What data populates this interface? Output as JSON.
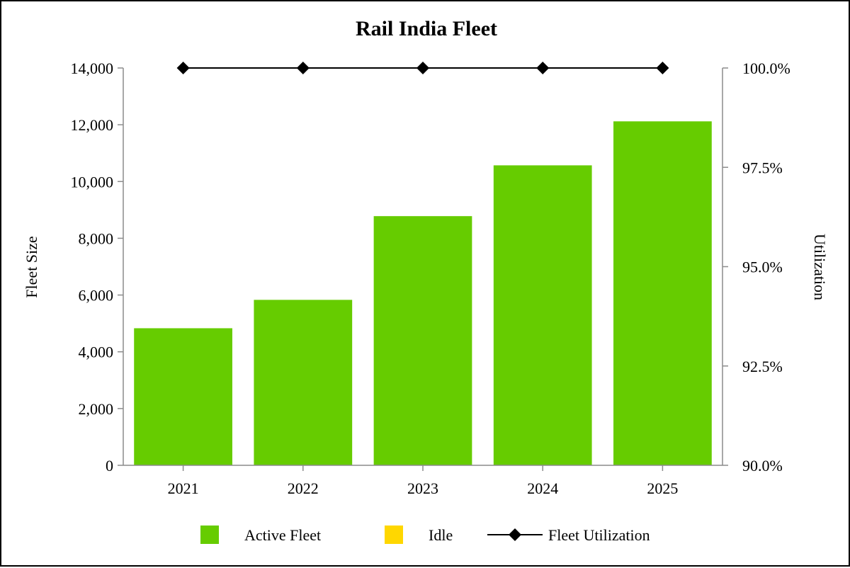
{
  "chart_data": {
    "type": "bar",
    "title": "Rail India Fleet",
    "categories": [
      "2021",
      "2022",
      "2023",
      "2024",
      "2025"
    ],
    "series": [
      {
        "name": "Active Fleet",
        "type": "bar",
        "axis": "left",
        "color": "#66CC00",
        "values": [
          4830,
          5830,
          8780,
          10570,
          12120
        ]
      },
      {
        "name": "Idle",
        "type": "bar",
        "axis": "left",
        "color": "#FFD700",
        "values": [
          0,
          0,
          0,
          0,
          0
        ]
      },
      {
        "name": "Fleet Utilization",
        "type": "line",
        "axis": "right",
        "color": "#000000",
        "marker": "diamond",
        "values": [
          100.0,
          100.0,
          100.0,
          100.0,
          100.0
        ]
      }
    ],
    "ylabel": "Fleet Size",
    "ylim": [
      0,
      14000
    ],
    "yticks": [
      0,
      2000,
      4000,
      6000,
      8000,
      10000,
      12000,
      14000
    ],
    "ytick_labels": [
      "0",
      "2,000",
      "4,000",
      "6,000",
      "8,000",
      "10,000",
      "12,000",
      "14,000"
    ],
    "y2label": "Utilization",
    "y2lim": [
      90.0,
      100.0
    ],
    "y2ticks": [
      90.0,
      92.5,
      95.0,
      97.5,
      100.0
    ],
    "y2tick_labels": [
      "90.0%",
      "92.5%",
      "95.0%",
      "97.5%",
      "100.0%"
    ],
    "grid": false,
    "legend_position": "bottom"
  }
}
